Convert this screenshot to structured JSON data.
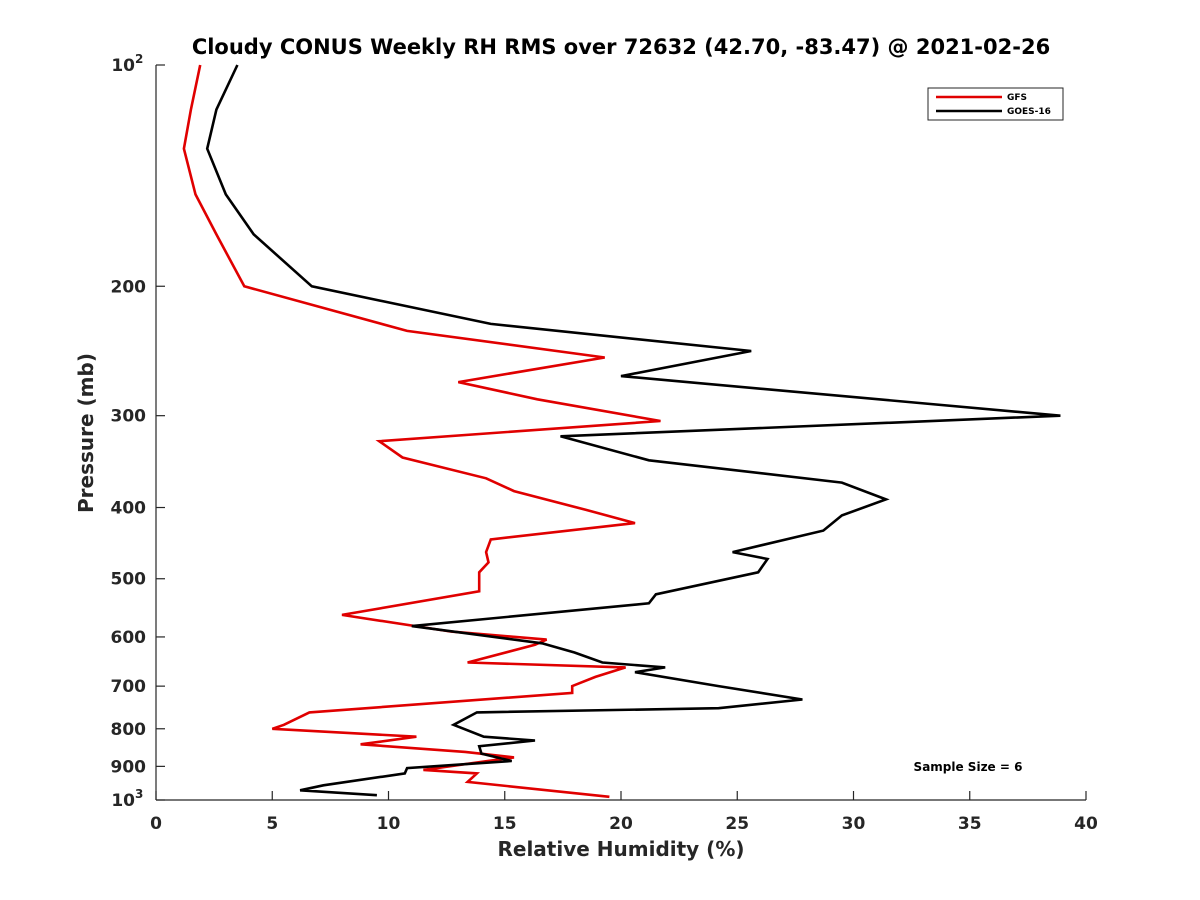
{
  "chart_data": {
    "type": "line",
    "title": "Cloudy CONUS Weekly RH RMS over 72632 (42.70, -83.47) @ 2021-02-26",
    "xlabel": "Relative Humidity (%)",
    "ylabel": "Pressure (mb)",
    "xlim": [
      0,
      40
    ],
    "ylim": [
      100,
      1000
    ],
    "y_scale": "log",
    "y_reversed": true,
    "x_ticks": [
      "0",
      "5",
      "10",
      "15",
      "20",
      "25",
      "30",
      "35",
      "40"
    ],
    "y_ticks": [
      {
        "value": 100,
        "base": "10",
        "exp": "2"
      },
      {
        "value": 200,
        "label": "200"
      },
      {
        "value": 300,
        "label": "300"
      },
      {
        "value": 400,
        "label": "400"
      },
      {
        "value": 500,
        "label": "500"
      },
      {
        "value": 600,
        "label": "600"
      },
      {
        "value": 700,
        "label": "700"
      },
      {
        "value": 800,
        "label": "800"
      },
      {
        "value": 900,
        "label": "900"
      },
      {
        "value": 1000,
        "base": "10",
        "exp": "3"
      }
    ],
    "legend_position": "top-right",
    "annotation": "Sample Size = 6",
    "series": [
      {
        "name": "GFS",
        "color": "#e00000",
        "points": [
          [
            1.9,
            100
          ],
          [
            1.5,
            115
          ],
          [
            1.2,
            130
          ],
          [
            1.7,
            150
          ],
          [
            2.6,
            170
          ],
          [
            3.8,
            200
          ],
          [
            10.8,
            230
          ],
          [
            19.3,
            250
          ],
          [
            13.0,
            270
          ],
          [
            16.4,
            285
          ],
          [
            21.7,
            305
          ],
          [
            9.6,
            325
          ],
          [
            10.6,
            342
          ],
          [
            14.2,
            365
          ],
          [
            15.4,
            380
          ],
          [
            18.5,
            403
          ],
          [
            20.6,
            420
          ],
          [
            14.4,
            442
          ],
          [
            14.2,
            460
          ],
          [
            14.3,
            475
          ],
          [
            13.9,
            490
          ],
          [
            13.9,
            520
          ],
          [
            8.0,
            560
          ],
          [
            12.7,
            590
          ],
          [
            16.8,
            605
          ],
          [
            16.3,
            615
          ],
          [
            13.4,
            650
          ],
          [
            20.2,
            660
          ],
          [
            18.9,
            680
          ],
          [
            17.9,
            700
          ],
          [
            17.9,
            715
          ],
          [
            6.6,
            760
          ],
          [
            5.5,
            790
          ],
          [
            5.0,
            800
          ],
          [
            11.2,
            820
          ],
          [
            8.8,
            840
          ],
          [
            13.3,
            860
          ],
          [
            15.4,
            875
          ],
          [
            11.5,
            910
          ],
          [
            13.8,
            920
          ],
          [
            13.4,
            945
          ],
          [
            19.5,
            990
          ]
        ]
      },
      {
        "name": "GOES-16",
        "color": "#000000",
        "points": [
          [
            3.5,
            100
          ],
          [
            2.6,
            115
          ],
          [
            2.2,
            130
          ],
          [
            3.0,
            150
          ],
          [
            4.2,
            170
          ],
          [
            6.7,
            200
          ],
          [
            14.4,
            225
          ],
          [
            25.6,
            245
          ],
          [
            20.0,
            265
          ],
          [
            38.9,
            300
          ],
          [
            17.4,
            320
          ],
          [
            21.2,
            345
          ],
          [
            29.5,
            370
          ],
          [
            31.4,
            390
          ],
          [
            29.5,
            410
          ],
          [
            28.7,
            430
          ],
          [
            24.8,
            460
          ],
          [
            26.3,
            470
          ],
          [
            25.9,
            490
          ],
          [
            21.5,
            525
          ],
          [
            21.2,
            540
          ],
          [
            11.0,
            580
          ],
          [
            16.6,
            612
          ],
          [
            18.0,
            630
          ],
          [
            19.2,
            650
          ],
          [
            21.9,
            660
          ],
          [
            20.6,
            670
          ],
          [
            24.2,
            700
          ],
          [
            27.8,
            730
          ],
          [
            24.2,
            750
          ],
          [
            13.8,
            760
          ],
          [
            12.8,
            790
          ],
          [
            14.1,
            820
          ],
          [
            16.3,
            830
          ],
          [
            13.9,
            845
          ],
          [
            14.0,
            865
          ],
          [
            15.3,
            885
          ],
          [
            10.8,
            905
          ],
          [
            10.7,
            920
          ],
          [
            7.2,
            955
          ],
          [
            6.2,
            970
          ],
          [
            9.5,
            985
          ]
        ]
      }
    ]
  }
}
